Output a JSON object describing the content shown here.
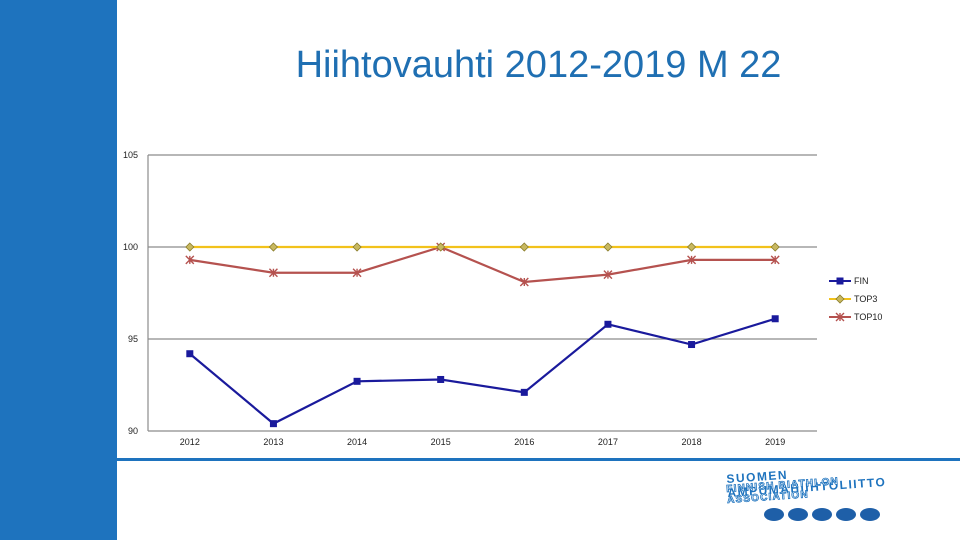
{
  "slide": {
    "title": "Hiihtovauhti 2012-2019 M 22"
  },
  "logo": {
    "line1": "SUOMEN AMPUMAHIIHTOLIITTO",
    "line2": "FINNISH BIATHLON ASSOCIATION",
    "dot_count": 5
  },
  "chart_data": {
    "type": "line",
    "title": "",
    "xlabel": "",
    "ylabel": "",
    "categories": [
      "2012",
      "2013",
      "2014",
      "2015",
      "2016",
      "2017",
      "2018",
      "2019"
    ],
    "ylim": [
      90,
      105
    ],
    "yticks": [
      90,
      95,
      100,
      105
    ],
    "grid": "horizontal",
    "legend_position": "right",
    "series": [
      {
        "name": "FIN",
        "color": "#1a1a9c",
        "marker": "square",
        "values": [
          94.2,
          90.4,
          92.7,
          92.8,
          92.1,
          95.8,
          94.7,
          96.1
        ]
      },
      {
        "name": "TOP3",
        "color": "#f2c21b",
        "marker": "diamond",
        "values": [
          100,
          100,
          100,
          100,
          100,
          100,
          100,
          100
        ]
      },
      {
        "name": "TOP10",
        "color": "#b5524f",
        "marker": "asterisk",
        "values": [
          99.3,
          98.6,
          98.6,
          100,
          98.1,
          98.5,
          99.3,
          99.3
        ]
      }
    ]
  }
}
